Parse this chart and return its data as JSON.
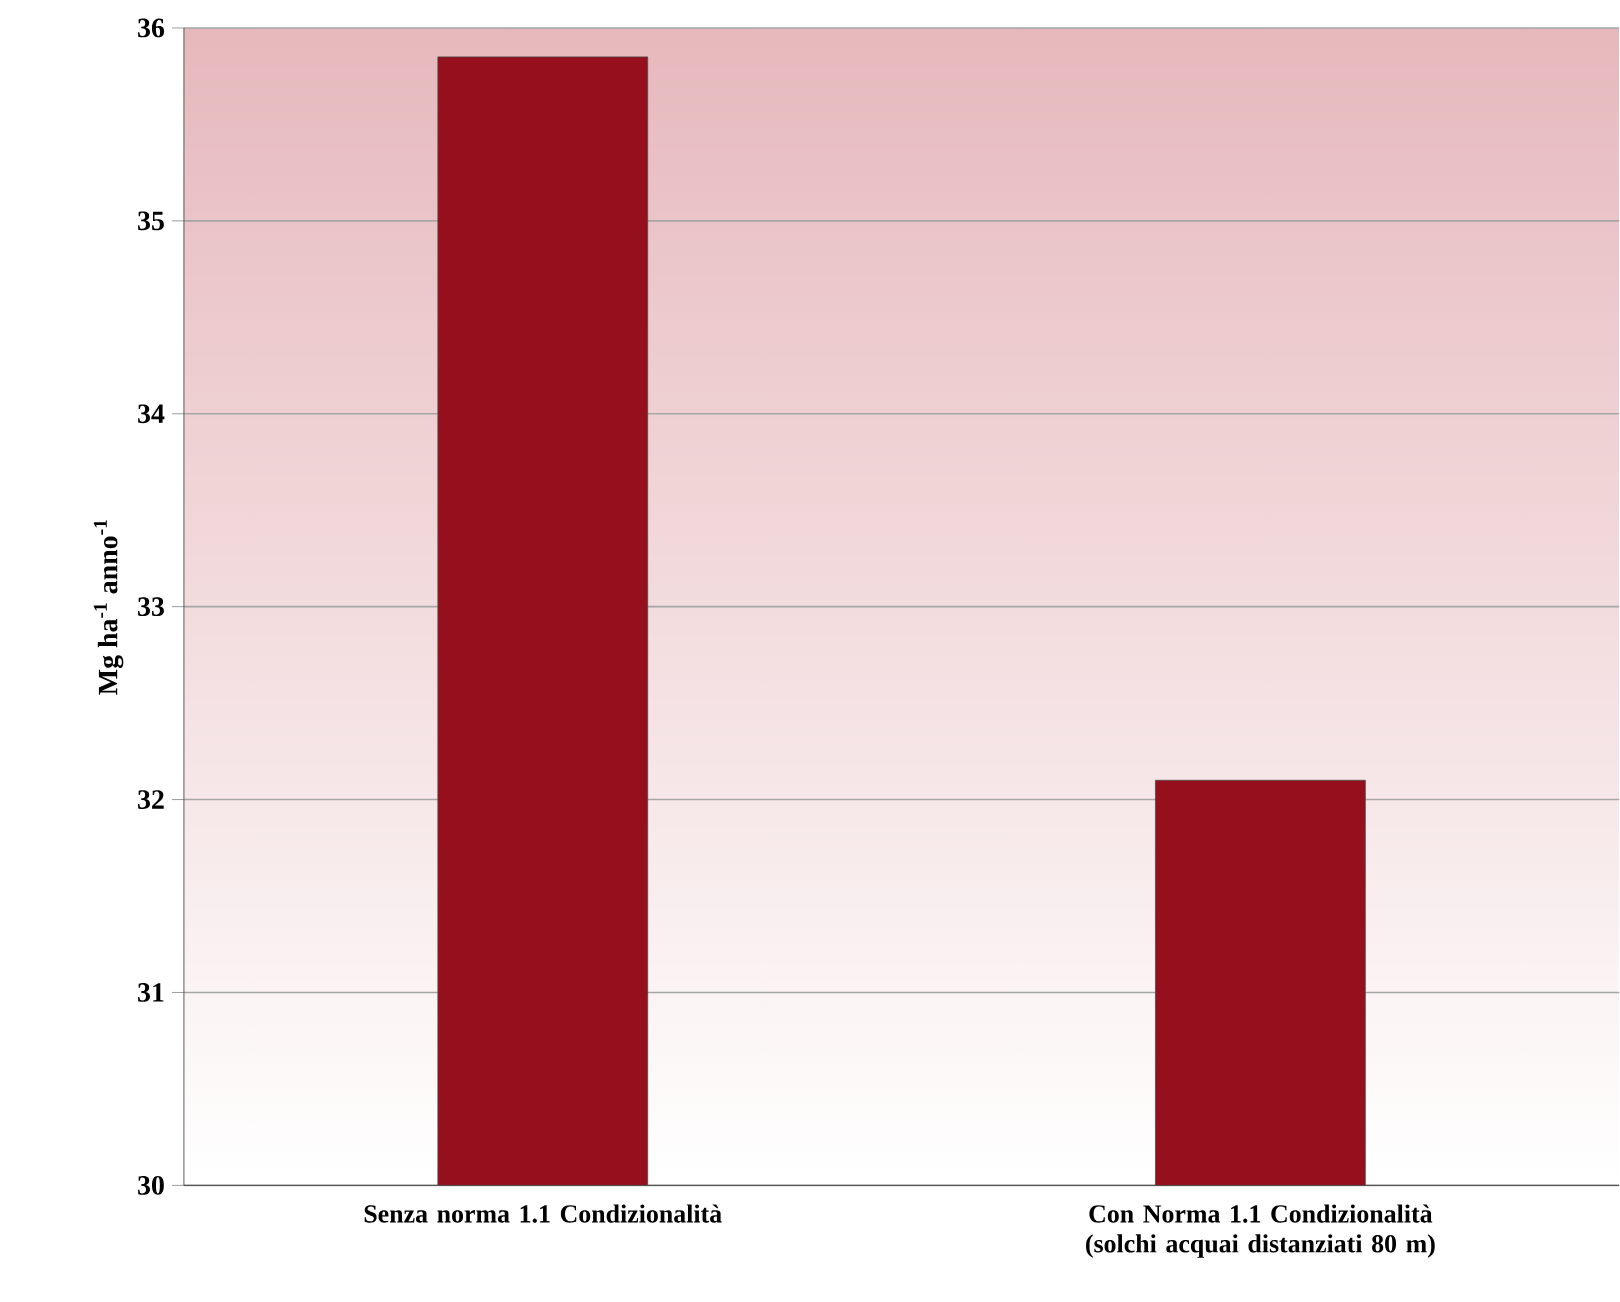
{
  "chart_data": {
    "type": "bar",
    "categories": [
      "Senza norma 1.1 Condizionalità",
      "Con Norma 1.1 Condizionalità (solchi acquai distanziati 80 m)"
    ],
    "values": [
      35.85,
      32.1
    ],
    "color": "#960f1c",
    "ylabel": "Mg ha$^{-1}$ anno$^{-1}$",
    "ylim": [
      30,
      36
    ],
    "yticks": [
      30,
      31,
      32,
      33,
      34,
      35,
      36
    ],
    "grid": "y"
  }
}
